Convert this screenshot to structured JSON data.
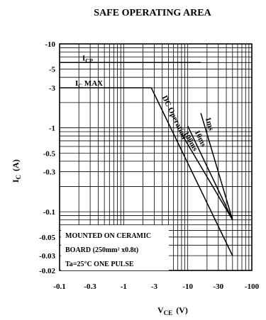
{
  "chart_data": {
    "type": "line",
    "title": "SAFE OPERATING AREA",
    "xlabel_main": "V",
    "xlabel_sub": "CE",
    "xlabel_unit": "(V)",
    "ylabel_main": "I",
    "ylabel_sub": "C",
    "ylabel_unit": "(A)",
    "x_scale": "log",
    "y_scale": "log",
    "xlim": [
      -0.1,
      -100
    ],
    "ylim": [
      -0.02,
      -10
    ],
    "x_ticks": [
      {
        "value": -0.1,
        "label": "-0.1"
      },
      {
        "value": -0.3,
        "label": "-0.3"
      },
      {
        "value": -1,
        "label": "-1"
      },
      {
        "value": -3,
        "label": "-3"
      },
      {
        "value": -10,
        "label": "-10"
      },
      {
        "value": -30,
        "label": "-30"
      },
      {
        "value": -100,
        "label": "-100"
      }
    ],
    "y_ticks": [
      {
        "value": -10,
        "label": "-10"
      },
      {
        "value": -5,
        "label": "-5"
      },
      {
        "value": -3,
        "label": "-3"
      },
      {
        "value": -1,
        "label": "-1"
      },
      {
        "value": -0.5,
        "label": "-0.5"
      },
      {
        "value": -0.3,
        "label": "-0.3"
      },
      {
        "value": -0.1,
        "label": "-0.1"
      },
      {
        "value": -0.05,
        "label": "-0.05"
      },
      {
        "value": -0.03,
        "label": "-0.03"
      },
      {
        "value": -0.02,
        "label": "-0.02"
      }
    ],
    "series": [
      {
        "name": "1ms",
        "x": [
          -16,
          -50
        ],
        "y": [
          -1.5,
          -0.08
        ]
      },
      {
        "name": "10ms",
        "x": [
          -10,
          -50
        ],
        "y": [
          -1.05,
          -0.08
        ]
      },
      {
        "name": "100ms",
        "x": [
          -8,
          -50
        ],
        "y": [
          -0.85,
          -0.08
        ]
      },
      {
        "name": "DC Operation",
        "x": [
          -2.7,
          -50
        ],
        "y": [
          -3,
          -0.03
        ]
      }
    ],
    "limits": [
      {
        "label_main": "I",
        "label_sub": "CP",
        "value": -6,
        "x_end": -16
      },
      {
        "label_main": "I",
        "label_sub": "C",
        "label_suffix": " MAX",
        "value": -3,
        "x_end": -2.7
      }
    ],
    "annotation_lines": [
      "MOUNTED ON CERAMIC",
      "BOARD (250mm² x0.8t)",
      "Ta=25°C ONE PULSE"
    ],
    "grid": true
  }
}
